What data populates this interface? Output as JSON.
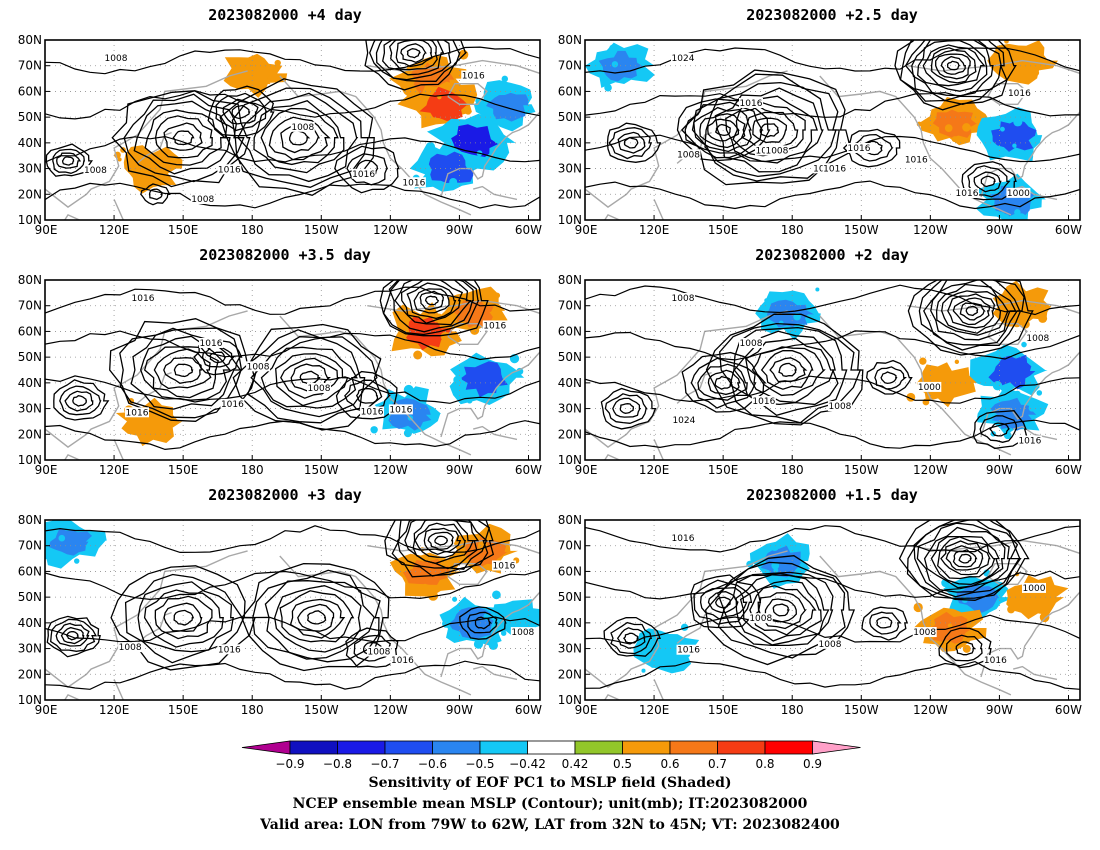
{
  "panels": [
    {
      "title": "2023082000  +4 day",
      "contour_labels": [
        "1016",
        "1016",
        "1016",
        "1008",
        "1008",
        "1016",
        "1008",
        "1008"
      ],
      "sensitivity_regions": [
        {
          "lon": 180,
          "lat": 67,
          "value": 0.5
        },
        {
          "lon": -103,
          "lat": 65,
          "value": 0.6
        },
        {
          "lon": -98,
          "lat": 55,
          "value": 0.7
        },
        {
          "lon": -85,
          "lat": 40,
          "value": -0.8
        },
        {
          "lon": -95,
          "lat": 30,
          "value": -0.7
        },
        {
          "lon": -70,
          "lat": 55,
          "value": -0.6
        },
        {
          "lon": 135,
          "lat": 30,
          "value": 0.5
        }
      ]
    },
    {
      "title": "2023082000  +2.5 day",
      "contour_labels": [
        "1016",
        "1008",
        "1016",
        "1008",
        "1000",
        "1016",
        "1024",
        "1016",
        "1016",
        "1016",
        "1016",
        "1008"
      ],
      "sensitivity_regions": [
        {
          "lon": 105,
          "lat": 70,
          "value": -0.6
        },
        {
          "lon": -110,
          "lat": 48,
          "value": 0.6
        },
        {
          "lon": -85,
          "lat": 43,
          "value": -0.7
        },
        {
          "lon": -85,
          "lat": 18,
          "value": -0.6
        },
        {
          "lon": -80,
          "lat": 72,
          "value": 0.5
        }
      ]
    },
    {
      "title": "2023082000  +3.5 day",
      "contour_labels": [
        "1016",
        "1016",
        "1016",
        "1016",
        "1016",
        "1008",
        "1016",
        "1016",
        "1008"
      ],
      "sensitivity_regions": [
        {
          "lon": -105,
          "lat": 60,
          "value": 0.7
        },
        {
          "lon": -85,
          "lat": 68,
          "value": 0.6
        },
        {
          "lon": -80,
          "lat": 42,
          "value": -0.7
        },
        {
          "lon": -112,
          "lat": 28,
          "value": -0.6
        },
        {
          "lon": 135,
          "lat": 25,
          "value": 0.5
        }
      ]
    },
    {
      "title": "2023082000  +2 day",
      "contour_labels": [
        "1008",
        "1016",
        "1008",
        "1024",
        "1016",
        "1000",
        "1008",
        "1008"
      ],
      "sensitivity_regions": [
        {
          "lon": 178,
          "lat": 67,
          "value": -0.6
        },
        {
          "lon": -85,
          "lat": 45,
          "value": -0.7
        },
        {
          "lon": -85,
          "lat": 28,
          "value": -0.6
        },
        {
          "lon": -80,
          "lat": 70,
          "value": 0.5
        },
        {
          "lon": -115,
          "lat": 40,
          "value": 0.5
        }
      ]
    },
    {
      "title": "2023082000  +3 day",
      "contour_labels": [
        "1016",
        "1008",
        "1016",
        "1008",
        "1016",
        "1008"
      ],
      "sensitivity_regions": [
        {
          "lon": 100,
          "lat": 72,
          "value": -0.6
        },
        {
          "lon": -105,
          "lat": 60,
          "value": 0.6
        },
        {
          "lon": -80,
          "lat": 68,
          "value": 0.6
        },
        {
          "lon": -85,
          "lat": 40,
          "value": -0.6
        },
        {
          "lon": -65,
          "lat": 42,
          "value": -0.5
        }
      ]
    },
    {
      "title": "2023082000  +1.5 day",
      "contour_labels": [
        "1008",
        "1008",
        "1000",
        "1016",
        "1016",
        "1008",
        "1016"
      ],
      "sensitivity_regions": [
        {
          "lon": 175,
          "lat": 64,
          "value": -0.6
        },
        {
          "lon": -100,
          "lat": 50,
          "value": -0.6
        },
        {
          "lon": -112,
          "lat": 38,
          "value": 0.6
        },
        {
          "lon": -75,
          "lat": 50,
          "value": 0.5
        },
        {
          "lon": 125,
          "lat": 30,
          "value": -0.5
        }
      ]
    }
  ],
  "axes": {
    "lat_labels": [
      "10N",
      "20N",
      "30N",
      "40N",
      "50N",
      "60N",
      "70N",
      "80N"
    ],
    "lon_labels": [
      "90E",
      "120E",
      "150E",
      "180",
      "150W",
      "120W",
      "90W",
      "60W"
    ]
  },
  "colorbar": {
    "labels": [
      "−0.9",
      "−0.8",
      "−0.7",
      "−0.6",
      "−0.5",
      "−0.42",
      "0.42",
      "0.5",
      "0.6",
      "0.7",
      "0.8",
      "0.9"
    ],
    "colors": [
      "#b00090",
      "#1010c0",
      "#1a1ae6",
      "#1f4df0",
      "#2a85f0",
      "#14c8f5",
      "#ffffff",
      "#92c62a",
      "#f59a0a",
      "#f57818",
      "#f53c14",
      "#ff0000",
      "#ffa0c8"
    ]
  },
  "caption": {
    "line1": "Sensitivity of EOF PC1 to MSLP field (Shaded)",
    "line2": "NCEP ensemble mean MSLP (Contour); unit(mb); IT:2023082000",
    "line3": "Valid area: LON from 79W to 62W, LAT from 32N to 45N; VT: 2023082400"
  }
}
